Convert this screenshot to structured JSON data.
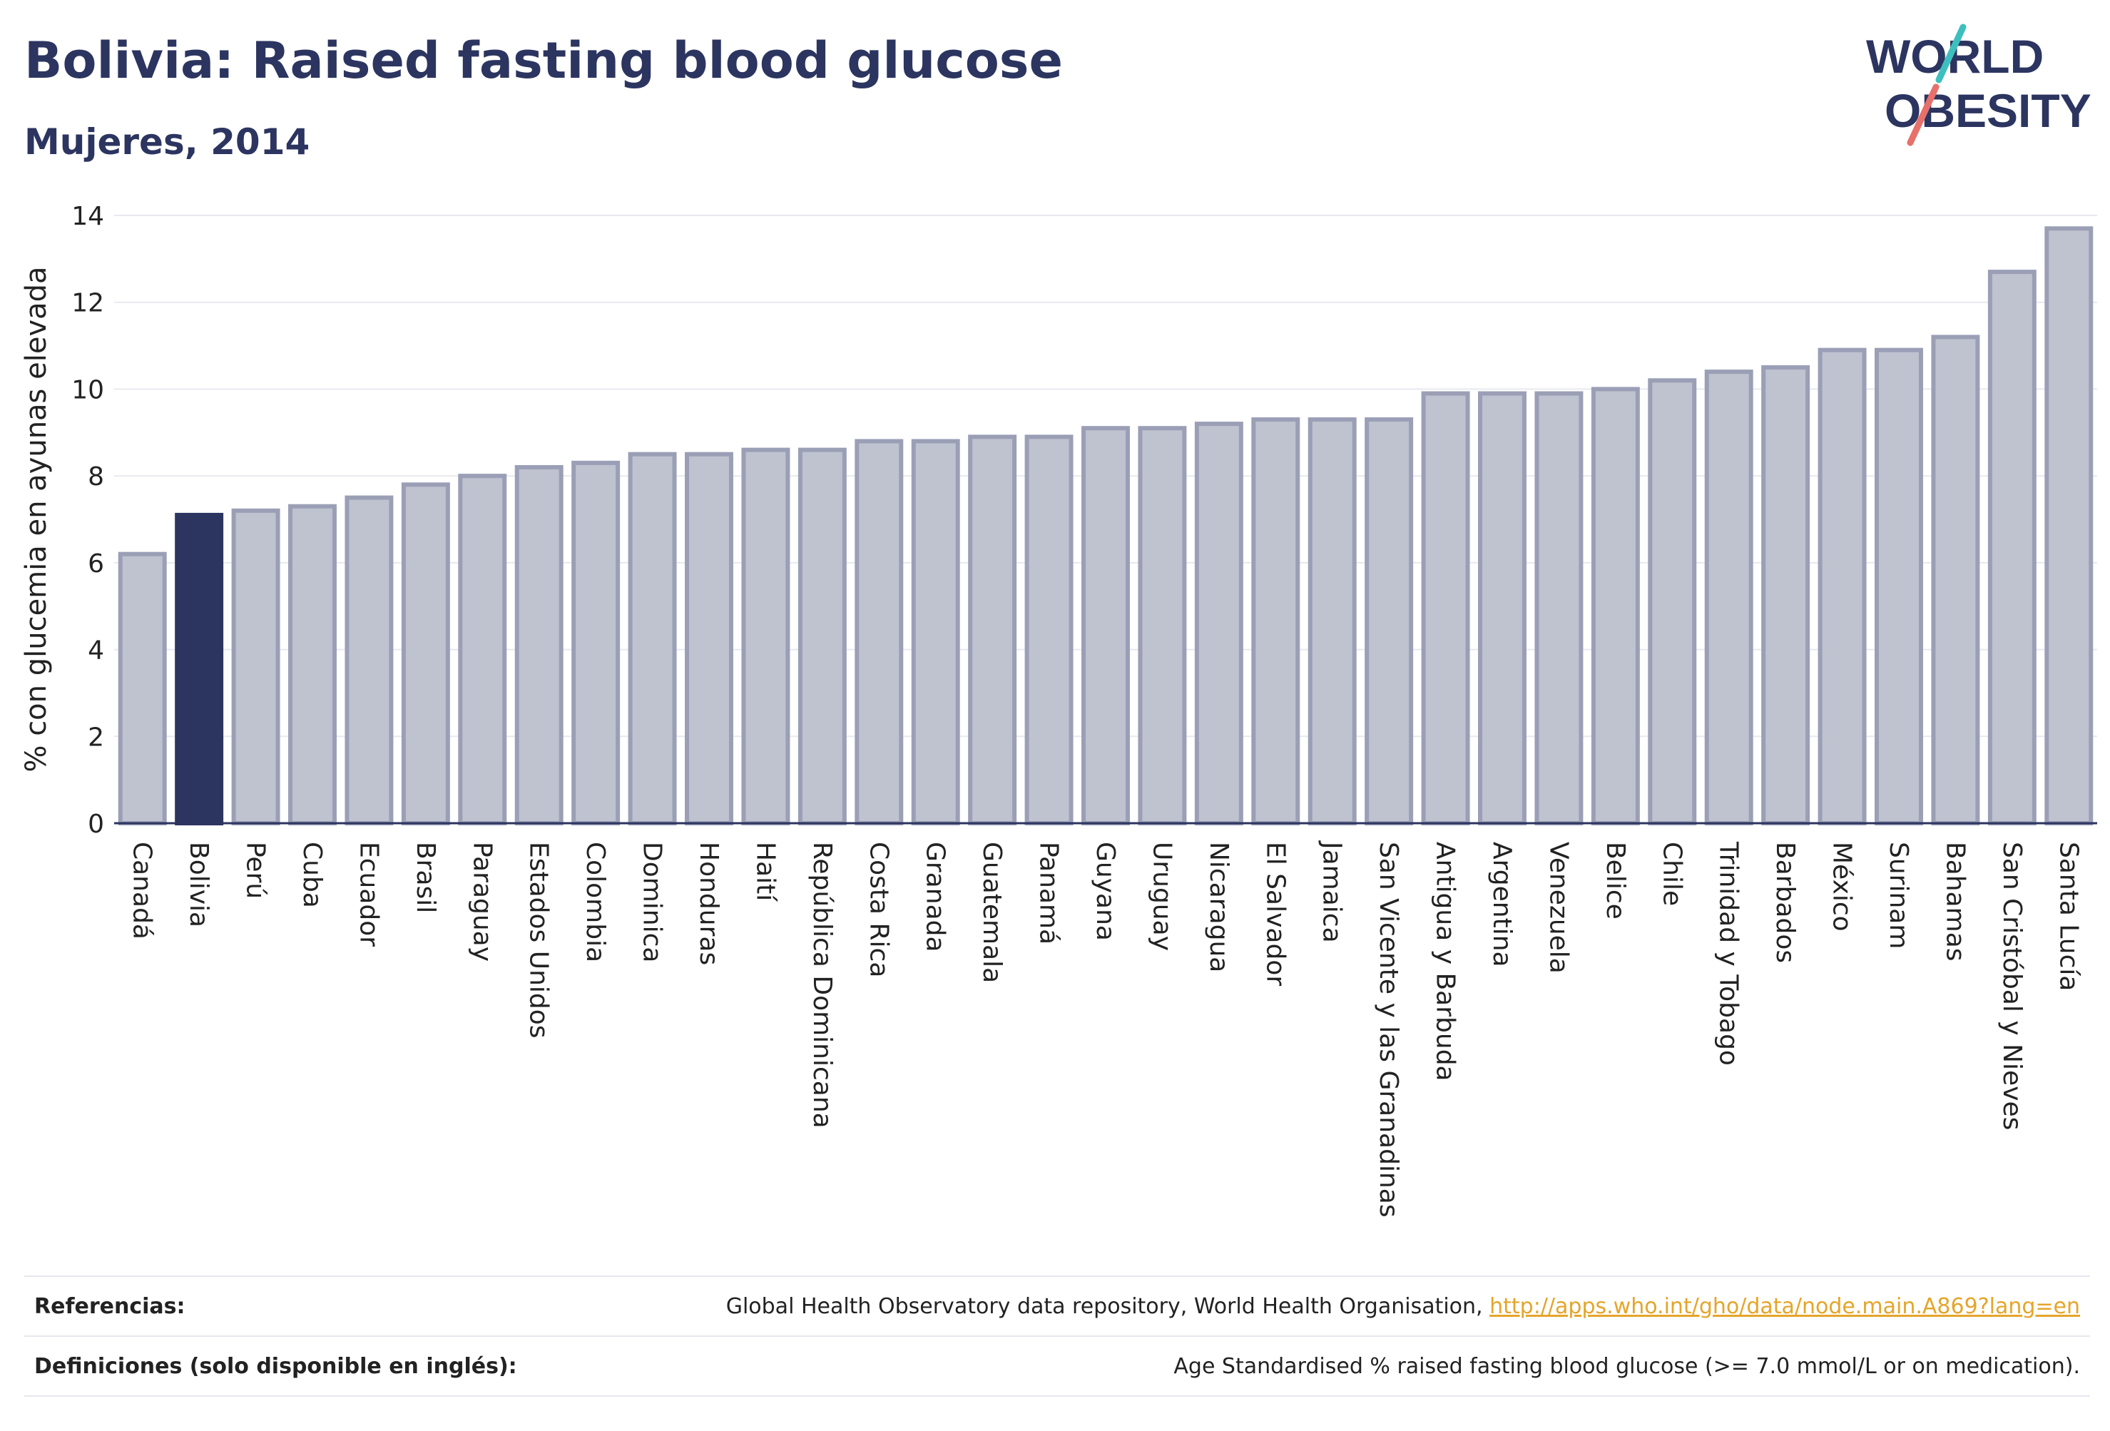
{
  "header": {
    "title": "Bolivia: Raised fasting blood glucose",
    "subtitle": "Mujeres, 2014"
  },
  "logo": {
    "line1": "WORLD",
    "line2": "OBESITY",
    "slash_colors": [
      "#3ebfbf",
      "#e8706a"
    ],
    "text_color": "#2c3560"
  },
  "chart_data": {
    "type": "bar",
    "title": "Bolivia: Raised fasting blood glucose",
    "ylabel": "% con glucemia en ayunas elevada",
    "xlabel": "",
    "ylim": [
      0,
      14
    ],
    "yticks": [
      0,
      2,
      4,
      6,
      8,
      10,
      12,
      14
    ],
    "grid": true,
    "highlight": "Bolivia",
    "colors": {
      "bar": "#bfc2cf",
      "bar_edge": "#9b9fb6",
      "highlight": "#2c3560"
    },
    "categories": [
      "Canadá",
      "Bolivia",
      "Perú",
      "Cuba",
      "Ecuador",
      "Brasil",
      "Paraguay",
      "Estados Unidos",
      "Colombia",
      "Dominica",
      "Honduras",
      "Haití",
      "República Dominicana",
      "Costa Rica",
      "Granada",
      "Guatemala",
      "Panamá",
      "Guyana",
      "Uruguay",
      "Nicaragua",
      "El Salvador",
      "Jamaica",
      "San Vicente y las Granadinas",
      "Antigua y Barbuda",
      "Argentina",
      "Venezuela",
      "Belice",
      "Chile",
      "Trinidad y Tobago",
      "Barbados",
      "México",
      "Surinam",
      "Bahamas",
      "San Cristóbal y Nieves",
      "Santa Lucía"
    ],
    "values": [
      6.2,
      7.1,
      7.2,
      7.3,
      7.5,
      7.8,
      8.0,
      8.2,
      8.3,
      8.5,
      8.5,
      8.6,
      8.6,
      8.8,
      8.8,
      8.9,
      8.9,
      9.1,
      9.1,
      9.2,
      9.3,
      9.3,
      9.3,
      9.9,
      9.9,
      9.9,
      10.0,
      10.2,
      10.4,
      10.5,
      10.9,
      10.9,
      11.2,
      12.7,
      13.7
    ]
  },
  "footer": {
    "references_label": "Referencias:",
    "references_text": "Global Health Observatory data repository, World Health Organisation,",
    "references_link": "http://apps.who.int/gho/data/node.main.A869?lang=en",
    "definitions_label": "Definiciones (solo disponible en inglés):",
    "definitions_text": "Age Standardised % raised fasting blood glucose (>= 7.0 mmol/L or on medication)."
  }
}
